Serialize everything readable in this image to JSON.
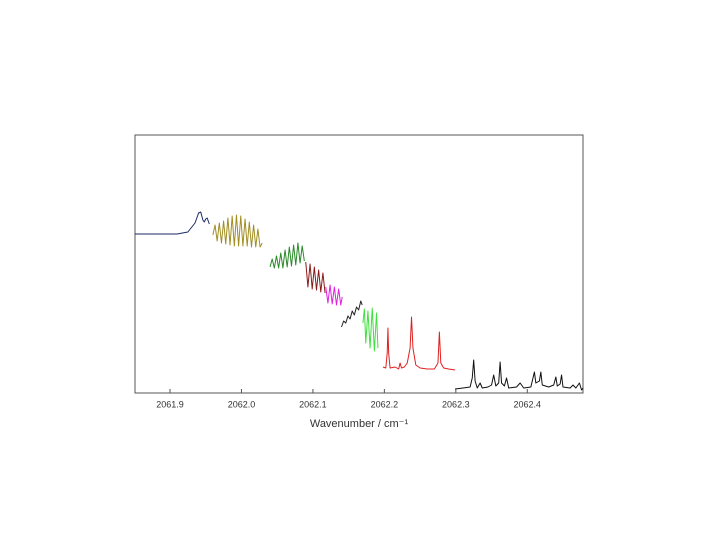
{
  "chart_data": {
    "type": "line",
    "xlabel": "Wavenumber / cm⁻¹",
    "xlim": [
      2061.851,
      2062.478
    ],
    "xticks": [
      2061.9,
      {
        "value": 2062.0,
        "label": "2062.0"
      },
      2062.1,
      2062.2,
      2062.3,
      2062.4
    ],
    "ylim": [
      0,
      258
    ],
    "series": [
      {
        "color": "#1c2a66",
        "x": [
          2061.851,
          2061.88,
          2061.91,
          2061.925,
          2061.935,
          2061.94,
          2061.943,
          2061.946,
          2061.948,
          2061.95,
          2061.952,
          2061.955
        ],
        "values": [
          159,
          159,
          159,
          161,
          170,
          180,
          181,
          173,
          171,
          174,
          175,
          169
        ]
      },
      {
        "color": "#a08e22",
        "x": [
          2061.96,
          2061.963,
          2061.966,
          2061.969,
          2061.972,
          2061.975,
          2061.978,
          2061.981,
          2061.984,
          2061.987,
          2061.99,
          2061.993,
          2061.996,
          2061.999,
          2062.002,
          2062.005,
          2062.008,
          2062.011,
          2062.014,
          2062.017,
          2062.02,
          2062.023,
          2062.026,
          2062.029
        ],
        "values": [
          158,
          168,
          152,
          170,
          150,
          172,
          149,
          175,
          148,
          177,
          147,
          178,
          147,
          177,
          147,
          174,
          147,
          171,
          146,
          168,
          146,
          164,
          146,
          150
        ]
      },
      {
        "color": "#2a8a2a",
        "x": [
          2062.04,
          2062.043,
          2062.046,
          2062.049,
          2062.052,
          2062.055,
          2062.058,
          2062.061,
          2062.064,
          2062.067,
          2062.07,
          2062.073,
          2062.076,
          2062.079,
          2062.082,
          2062.085,
          2062.088
        ],
        "values": [
          126,
          134,
          125,
          137,
          125,
          140,
          125,
          143,
          126,
          146,
          127,
          148,
          128,
          150,
          130,
          147,
          132
        ]
      },
      {
        "color": "#8a1a1a",
        "x": [
          2062.09,
          2062.093,
          2062.096,
          2062.099,
          2062.102,
          2062.105,
          2062.108,
          2062.111,
          2062.114,
          2062.117
        ],
        "values": [
          131,
          106,
          129,
          104,
          126,
          103,
          123,
          101,
          120,
          100
        ]
      },
      {
        "color": "#e020e0",
        "x": [
          2062.118,
          2062.121,
          2062.124,
          2062.127,
          2062.13,
          2062.133,
          2062.136,
          2062.139,
          2062.141
        ],
        "values": [
          106,
          90,
          108,
          89,
          106,
          88,
          104,
          88,
          96
        ]
      },
      {
        "color": "#222222",
        "x": [
          2062.14,
          2062.143,
          2062.146,
          2062.149,
          2062.152,
          2062.155,
          2062.158,
          2062.161,
          2062.164,
          2062.167,
          2062.169
        ],
        "values": [
          66,
          72,
          70,
          77,
          74,
          82,
          78,
          86,
          83,
          92,
          88
        ]
      },
      {
        "color": "#40e040",
        "x": [
          2062.17,
          2062.172,
          2062.174,
          2062.177,
          2062.18,
          2062.183,
          2062.186,
          2062.189,
          2062.191
        ],
        "values": [
          70,
          84,
          50,
          82,
          45,
          85,
          42,
          80,
          45
        ]
      },
      {
        "color": "#e02020",
        "x": [
          2062.198,
          2062.202,
          2062.204,
          2062.205,
          2062.206,
          2062.208,
          2062.215,
          2062.22,
          2062.222,
          2062.224,
          2062.228,
          2062.232,
          2062.236,
          2062.238,
          2062.24,
          2062.244,
          2062.25,
          2062.26,
          2062.27,
          2062.275,
          2062.277,
          2062.279,
          2062.283,
          2062.29,
          2062.299
        ],
        "values": [
          26,
          25,
          40,
          65,
          40,
          25,
          26,
          24,
          30,
          25,
          26,
          30,
          45,
          76,
          45,
          28,
          25,
          24,
          24,
          30,
          61,
          30,
          25,
          24,
          23
        ]
      },
      {
        "color": "#111111",
        "x": [
          2062.299,
          2062.31,
          2062.32,
          2062.323,
          2062.325,
          2062.327,
          2062.33,
          2062.334,
          2062.337,
          2062.345,
          2062.35,
          2062.353,
          2062.356,
          2062.36,
          2062.362,
          2062.364,
          2062.368,
          2062.371,
          2062.374,
          2062.385,
          2062.39,
          2062.395,
          2062.405,
          2062.408,
          2062.41,
          2062.412,
          2062.417,
          2062.419,
          2062.421,
          2062.43,
          2062.437,
          2062.44,
          2062.442,
          2062.446,
          2062.448,
          2062.45,
          2062.46,
          2062.464,
          2062.468,
          2062.473,
          2062.476,
          2062.478
        ],
        "values": [
          4,
          5,
          6,
          15,
          33,
          12,
          5,
          10,
          5,
          6,
          8,
          18,
          7,
          10,
          31,
          10,
          7,
          15,
          5,
          6,
          10,
          5,
          6,
          15,
          21,
          10,
          12,
          21,
          8,
          6,
          8,
          16,
          7,
          9,
          18,
          6,
          5,
          8,
          5,
          10,
          3,
          5
        ]
      }
    ]
  }
}
